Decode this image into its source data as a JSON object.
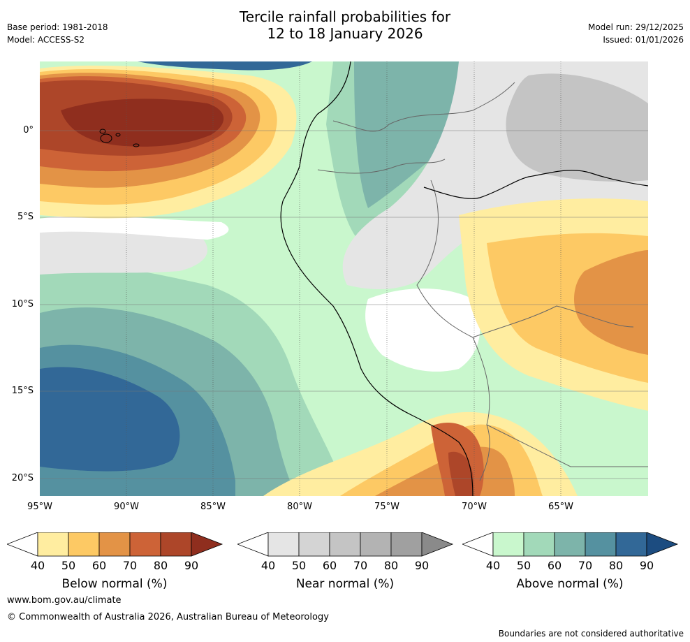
{
  "header": {
    "title_line1": "Tercile rainfall probabilities for",
    "title_line2": "12 to 18 January 2026",
    "base_period": "Base period: 1981-2018",
    "model": "Model: ACCESS-S2",
    "model_run": "Model run: 29/12/2025",
    "issued": "Issued: 01/01/2026"
  },
  "map": {
    "x_ticks": [
      "95°W",
      "90°W",
      "85°W",
      "80°W",
      "75°W",
      "70°W",
      "65°W"
    ],
    "y_ticks": [
      "0°",
      "5°S",
      "10°S",
      "15°S",
      "20°S"
    ]
  },
  "legends": [
    {
      "label": "Below normal (%)",
      "ticks": [
        "40",
        "50",
        "60",
        "70",
        "80",
        "90"
      ],
      "colors": [
        "#ffeda0",
        "#fdc964",
        "#e39346",
        "#cd6337",
        "#ad4629"
      ],
      "over_color": "#8f2e1e"
    },
    {
      "label": "Near normal (%)",
      "ticks": [
        "40",
        "50",
        "60",
        "70",
        "80",
        "90"
      ],
      "colors": [
        "#e5e5e5",
        "#d4d4d4",
        "#c4c4c4",
        "#b3b3b3",
        "#a0a0a0"
      ],
      "over_color": "#8a8a8a"
    },
    {
      "label": "Above normal (%)",
      "ticks": [
        "40",
        "50",
        "60",
        "70",
        "80",
        "90"
      ],
      "colors": [
        "#c9f7cd",
        "#a2d9b9",
        "#7db4aa",
        "#5591a0",
        "#326897"
      ],
      "over_color": "#1c4c80"
    }
  ],
  "footer": {
    "url": "www.bom.gov.au/climate",
    "copyright": "© Commonwealth of Australia 2026, Australian Bureau of Meteorology",
    "disclaimer": "Boundaries are not considered authoritative"
  }
}
